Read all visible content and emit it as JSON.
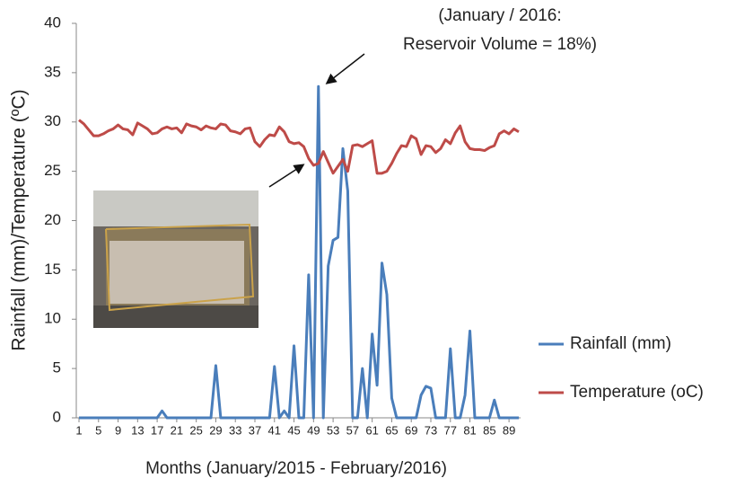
{
  "chart_data": {
    "type": "line",
    "x_label": "Months (January/2015 - February/2016)",
    "y_label": "Rainfall (mm)/Temperature (ºC)",
    "annotations": [
      "(January / 2016:",
      "Reservoir Volume = 18%)"
    ],
    "x": [
      1,
      2,
      3,
      4,
      5,
      6,
      7,
      8,
      9,
      10,
      11,
      12,
      13,
      14,
      15,
      16,
      17,
      18,
      19,
      20,
      21,
      22,
      23,
      24,
      25,
      26,
      27,
      28,
      29,
      30,
      31,
      32,
      33,
      34,
      35,
      36,
      37,
      38,
      39,
      40,
      41,
      42,
      43,
      44,
      45,
      46,
      47,
      48,
      49,
      50,
      51,
      52,
      53,
      54,
      55,
      56,
      57,
      58,
      59,
      60,
      61,
      62,
      63,
      64,
      65,
      66,
      67,
      68,
      69,
      70,
      71,
      72,
      73,
      74,
      75,
      76,
      77,
      78,
      79,
      80,
      81,
      82,
      83,
      84,
      85,
      86,
      87,
      88,
      89,
      90,
      91
    ],
    "xlim": [
      1,
      91
    ],
    "xticks": [
      1,
      5,
      9,
      13,
      17,
      21,
      25,
      29,
      33,
      37,
      41,
      45,
      49,
      53,
      57,
      61,
      65,
      69,
      73,
      77,
      81,
      85,
      89
    ],
    "ylim": [
      0,
      40
    ],
    "yticks": [
      0,
      5,
      10,
      15,
      20,
      25,
      30,
      35,
      40
    ],
    "grid": false,
    "legend": "right",
    "series": [
      {
        "name": "Rainfall (mm)",
        "color": "#4a7ebb",
        "values": [
          0,
          0,
          0,
          0,
          0,
          0,
          0,
          0,
          0,
          0,
          0,
          0,
          0,
          0,
          0,
          0,
          0,
          0.7,
          0,
          0,
          0,
          0,
          0,
          0,
          0,
          0,
          0,
          0,
          5.3,
          0,
          0,
          0,
          0,
          0,
          0,
          0,
          0,
          0,
          0,
          0,
          5.2,
          0,
          0.7,
          0,
          7.3,
          0,
          0,
          14.5,
          0,
          33.6,
          0,
          15.4,
          18,
          18.3,
          27.3,
          23,
          0,
          0,
          5,
          0,
          8.5,
          3.3,
          15.7,
          12.5,
          2,
          0,
          0,
          0,
          0,
          0,
          2.3,
          3.2,
          3,
          0,
          0,
          0,
          7,
          0,
          0,
          2.3,
          8.8,
          0,
          0,
          0,
          0,
          1.8,
          0,
          0,
          0,
          0,
          0
        ]
      },
      {
        "name": "Temperature (oC)",
        "color": "#be4b48",
        "values": [
          30.2,
          29.8,
          29.2,
          28.6,
          28.6,
          28.8,
          29.1,
          29.3,
          29.7,
          29.3,
          29.2,
          28.7,
          29.9,
          29.6,
          29.3,
          28.8,
          28.9,
          29.3,
          29.5,
          29.3,
          29.4,
          28.9,
          29.8,
          29.6,
          29.5,
          29.2,
          29.6,
          29.4,
          29.3,
          29.8,
          29.7,
          29.1,
          29.0,
          28.8,
          29.3,
          29.4,
          28.0,
          27.5,
          28.2,
          28.7,
          28.6,
          29.5,
          29.0,
          28.0,
          27.8,
          27.9,
          27.5,
          26.3,
          25.6,
          25.8,
          27.0,
          25.9,
          24.8,
          25.5,
          26.2,
          25.0,
          27.6,
          27.7,
          27.5,
          27.8,
          28.1,
          24.8,
          24.8,
          25.0,
          25.8,
          26.8,
          27.6,
          27.5,
          28.6,
          28.3,
          26.7,
          27.6,
          27.5,
          26.9,
          27.3,
          28.2,
          27.8,
          28.9,
          29.6,
          28.0,
          27.3,
          27.2,
          27.2,
          27.1,
          27.4,
          27.6,
          28.8,
          29.1,
          28.8,
          29.3,
          29.0
        ]
      }
    ]
  }
}
